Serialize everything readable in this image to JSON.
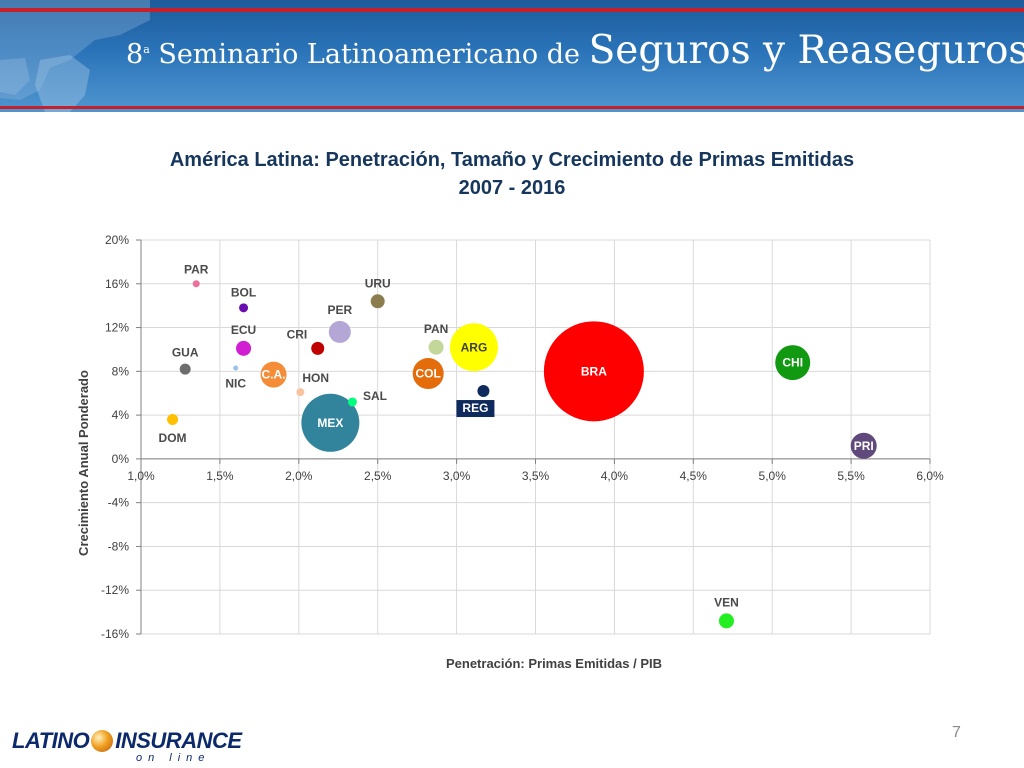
{
  "banner": {
    "number": "8",
    "ordinal": "a",
    "title_small": " Seminario Latinoamericano de ",
    "title_large": "Seguros y Reaseguros"
  },
  "chart_title_line1": "América Latina: Penetración, Tamaño y Crecimiento de Primas Emitidas",
  "chart_title_line2": "2007 - 2016",
  "page_number": "7",
  "logo": {
    "main_left": "LATINO",
    "main_right": "INSURANCE",
    "sub": "on line"
  },
  "colors": {
    "grid": "#d9d9d9",
    "axis_text": "#404040",
    "label_text": "#4a4a4a",
    "title": "#16365c"
  },
  "chart_data": {
    "type": "bubble",
    "xlabel": "Penetración: Primas Emitidas / PIB",
    "ylabel": "Crecimiento Anual Ponderado",
    "xlim": [
      1.0,
      6.0
    ],
    "ylim": [
      -16,
      20
    ],
    "xticks": [
      1.0,
      1.5,
      2.0,
      2.5,
      3.0,
      3.5,
      4.0,
      4.5,
      5.0,
      5.5,
      6.0
    ],
    "xtick_labels": [
      "1,0%",
      "1,5%",
      "2,0%",
      "2,5%",
      "3,0%",
      "3,5%",
      "4,0%",
      "4,5%",
      "5,0%",
      "5,5%",
      "6,0%"
    ],
    "yticks": [
      20,
      16,
      12,
      8,
      4,
      0,
      -4,
      -8,
      -12,
      -16
    ],
    "ytick_labels": [
      "20%",
      "16%",
      "12%",
      "8%",
      "4%",
      "0%",
      "-4%",
      "-8%",
      "-12%",
      "-16%"
    ],
    "grid": true,
    "points": [
      {
        "label": "PAR",
        "x": 1.35,
        "y": 16.0,
        "r": 3.5,
        "color": "#ee6f9a",
        "label_pos": "above"
      },
      {
        "label": "BOL",
        "x": 1.65,
        "y": 13.8,
        "r": 4.5,
        "color": "#6a0dad",
        "label_pos": "above"
      },
      {
        "label": "URU",
        "x": 2.5,
        "y": 14.4,
        "r": 7,
        "color": "#8c7d4e",
        "label_pos": "above"
      },
      {
        "label": "PER",
        "x": 2.26,
        "y": 11.6,
        "r": 11,
        "color": "#b4a7d6",
        "label_pos": "above"
      },
      {
        "label": "ECU",
        "x": 1.65,
        "y": 10.1,
        "r": 7.5,
        "color": "#d21ed2",
        "label_pos": "above"
      },
      {
        "label": "CRI",
        "x": 2.12,
        "y": 10.1,
        "r": 6.5,
        "color": "#c00000",
        "label_pos": "left"
      },
      {
        "label": "PAN",
        "x": 2.87,
        "y": 10.2,
        "r": 7.5,
        "color": "#c4d79b",
        "label_pos": "above"
      },
      {
        "label": "ARG",
        "x": 3.11,
        "y": 10.2,
        "r": 24,
        "color": "#ffff00",
        "label_pos": "inside"
      },
      {
        "label": "GUA",
        "x": 1.28,
        "y": 8.2,
        "r": 5.5,
        "color": "#6d6d6d",
        "label_pos": "above"
      },
      {
        "label": "NIC",
        "x": 1.6,
        "y": 8.3,
        "r": 2.5,
        "color": "#9bc2e6",
        "label_pos": "below"
      },
      {
        "label": "C.A.",
        "x": 1.84,
        "y": 7.7,
        "r": 13,
        "color": "#f58c38",
        "label_pos": "inside"
      },
      {
        "label": "HON",
        "x": 2.01,
        "y": 6.1,
        "r": 4,
        "color": "#f8c4a0",
        "label_pos": "above-right"
      },
      {
        "label": "COL",
        "x": 2.82,
        "y": 7.8,
        "r": 15.5,
        "color": "#e46c0a",
        "label_pos": "inside"
      },
      {
        "label": "BRA",
        "x": 3.87,
        "y": 8.0,
        "r": 50,
        "color": "#ff0000",
        "label_pos": "inside"
      },
      {
        "label": "CHI",
        "x": 5.13,
        "y": 8.8,
        "r": 17.5,
        "color": "#119911",
        "label_pos": "inside"
      },
      {
        "label": "REG",
        "x": 3.17,
        "y": 6.2,
        "r": 6,
        "color": "#0f2b5e",
        "label_pos": "below-box"
      },
      {
        "label": "SAL",
        "x": 2.34,
        "y": 5.2,
        "r": 4.5,
        "color": "#00ff80",
        "label_pos": "right"
      },
      {
        "label": "DOM",
        "x": 1.2,
        "y": 3.6,
        "r": 5.5,
        "color": "#ffc000",
        "label_pos": "below"
      },
      {
        "label": "MEX",
        "x": 2.2,
        "y": 3.3,
        "r": 29,
        "color": "#31849b",
        "label_pos": "inside"
      },
      {
        "label": "PRI",
        "x": 5.58,
        "y": 1.2,
        "r": 13,
        "color": "#604a7b",
        "label_pos": "inside"
      },
      {
        "label": "VEN",
        "x": 4.71,
        "y": -14.8,
        "r": 7.5,
        "color": "#22ee22",
        "label_pos": "above"
      }
    ]
  }
}
